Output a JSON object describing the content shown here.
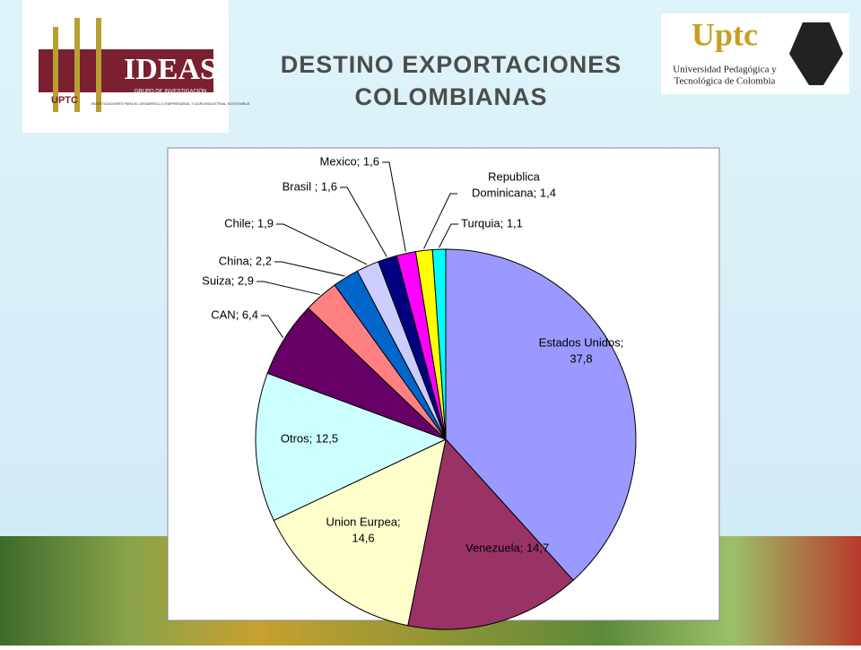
{
  "header": {
    "logo_left": {
      "name": "IDEAS",
      "org": "UPTC",
      "group": "GRUPO DE INVESTIGACIÓN",
      "motto": "INVESTIGADORES PARA EL DESARROLLO EMPRESARIAL Y AGROINDUSTRIAL SOSTENIBLE"
    },
    "logo_right": {
      "name": "Uptc",
      "line1": "Universidad Pedagógica y",
      "line2": "Tecnológica de Colombia"
    }
  },
  "chart_data": {
    "type": "pie",
    "title": [
      "DESTINO EXPORTACIONES",
      "COLOMBIANAS"
    ],
    "values": [
      37.8,
      14.7,
      14.6,
      12.5,
      6.4,
      2.9,
      2.2,
      1.9,
      1.6,
      1.6,
      1.4,
      1.1
    ],
    "value_labels": [
      [
        "Estados Unidos;",
        "37,8"
      ],
      [
        "Venezuela; 14,7"
      ],
      [
        "Union Eurpea;",
        "14,6"
      ],
      [
        "Otros; 12,5"
      ],
      [
        "CAN; 6,4"
      ],
      [
        "Suiza; 2,9"
      ],
      [
        "China; 2,2"
      ],
      [
        "Chile; 1,9"
      ],
      [
        "Brasil ; 1,6"
      ],
      [
        "Mexico; 1,6"
      ],
      [
        "Republica",
        "Dominicana; 1,4"
      ],
      [
        "Turquia; 1,1"
      ]
    ],
    "colors": [
      "#9999ff",
      "#993366",
      "#ffffcc",
      "#ccffff",
      "#660066",
      "#ff8080",
      "#0066cc",
      "#ccccff",
      "#000080",
      "#ff00ff",
      "#ffff00",
      "#00ffff"
    ]
  }
}
